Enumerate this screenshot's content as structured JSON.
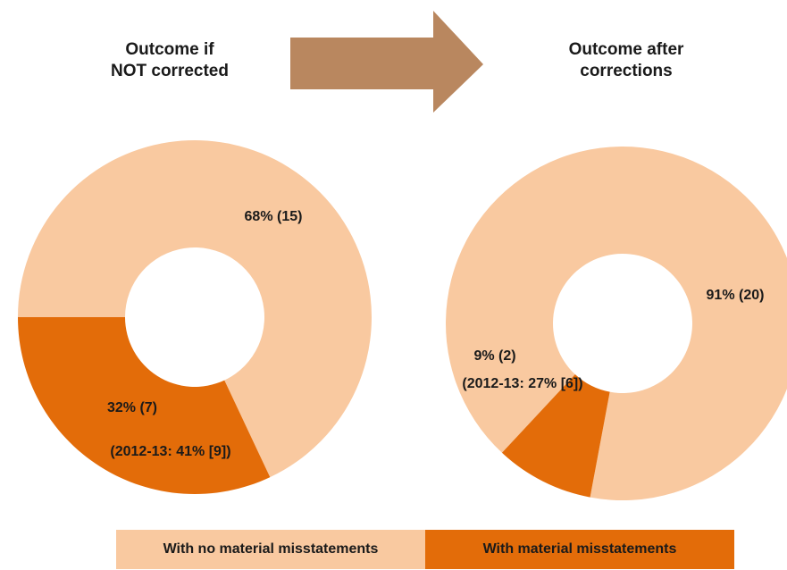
{
  "titles": {
    "left": "Outcome if\nNOT corrected",
    "right": "Outcome after\ncorrections"
  },
  "colors": {
    "no_misstatement": "#F9C9A0",
    "misstatement": "#E36C09",
    "arrow": "#B9875F"
  },
  "legend": {
    "no_misstatement": "With no material misstatements",
    "misstatement": "With material misstatements"
  },
  "chart_data": [
    {
      "type": "pie",
      "title": "Outcome if NOT corrected",
      "slices": [
        {
          "name": "With no material misstatements",
          "value": 68,
          "count": 15,
          "label": "68% (15)"
        },
        {
          "name": "With material misstatements",
          "value": 32,
          "count": 7,
          "label": "32% (7)",
          "note": "(2012-13: 41% [9])"
        }
      ]
    },
    {
      "type": "pie",
      "title": "Outcome after corrections",
      "slices": [
        {
          "name": "With no material misstatements",
          "value": 91,
          "count": 20,
          "label": "91% (20)"
        },
        {
          "name": "With material misstatements",
          "value": 9,
          "count": 2,
          "label": "9% (2)",
          "note": "(2012-13: 27% [6])"
        }
      ]
    }
  ]
}
